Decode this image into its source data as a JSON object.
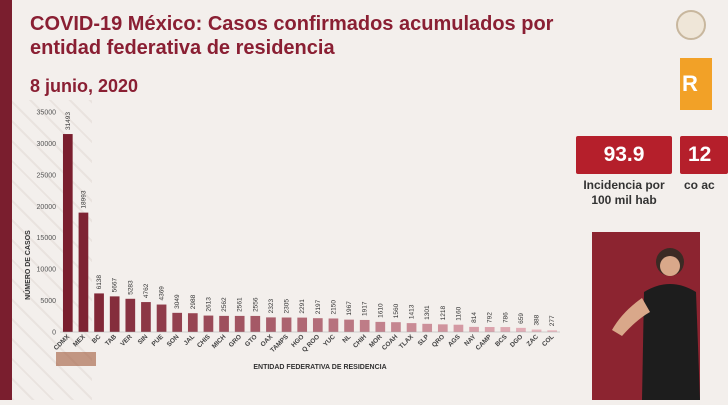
{
  "header": {
    "title": "COVID-19 México: Casos confirmados acumulados por entidad federativa de residencia",
    "date": "8 junio, 2020"
  },
  "side": {
    "orange_tile": "R",
    "metric1_value": "93.9",
    "metric1_label": "Incidencia por 100 mil hab",
    "metric2_value": "12",
    "metric2_label": "co ac"
  },
  "colors": {
    "accent": "#8a1f33",
    "bar_first": "#7a1e2e",
    "bar_last": "#e9b7bf",
    "metric_bg": "#b51f2b",
    "orange": "#f2a127"
  },
  "chart_data": {
    "type": "bar",
    "categories": [
      "CDMX",
      "MEX",
      "BC",
      "TAB",
      "VER",
      "SIN",
      "PUE",
      "SON",
      "JAL",
      "CHIS",
      "MICH",
      "GRO",
      "GTO",
      "OAX",
      "TAMPS",
      "HGO",
      "Q ROO",
      "YUC",
      "NL",
      "CHIH",
      "MOR",
      "COAH",
      "TLAX",
      "SLP",
      "QRO",
      "AGS",
      "NAY",
      "CAMP",
      "BCS",
      "DGO",
      "ZAC",
      "COL"
    ],
    "values": [
      31493,
      18993,
      6138,
      5667,
      5283,
      4762,
      4369,
      3049,
      2988,
      2613,
      2562,
      2561,
      2556,
      2323,
      2305,
      2291,
      2197,
      2150,
      1967,
      1917,
      1610,
      1560,
      1413,
      1301,
      1218,
      1160,
      814,
      792,
      786,
      659,
      388,
      277
    ],
    "xlabel": "ENTIDAD FEDERATIVA DE RESIDENCIA",
    "ylabel": "NÚMERO DE CASOS",
    "ylim": [
      0,
      35000
    ],
    "yticks": [
      0,
      5000,
      10000,
      15000,
      20000,
      25000,
      30000,
      35000
    ],
    "grid": false
  }
}
